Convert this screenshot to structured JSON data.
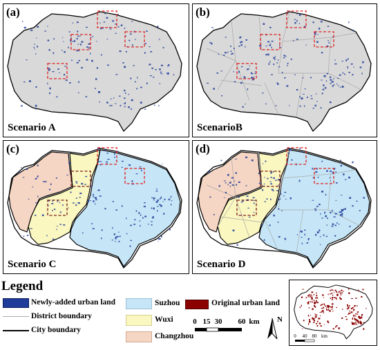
{
  "panels": [
    {
      "id": "a",
      "letter": "(a)",
      "scenario": "Scenario A",
      "mode": "gray",
      "district_lines": false,
      "urban": "newly_added"
    },
    {
      "id": "b",
      "letter": "(b)",
      "scenario": "ScenarioB",
      "mode": "gray",
      "district_lines": true,
      "urban": "newly_added"
    },
    {
      "id": "c",
      "letter": "(c)",
      "scenario": "Scenario C",
      "mode": "cities",
      "district_lines": false,
      "urban": "newly_added"
    },
    {
      "id": "d",
      "letter": "(d)",
      "scenario": "Scenario D",
      "mode": "cities",
      "district_lines": true,
      "urban": "newly_added"
    }
  ],
  "legend": {
    "title": "Legend",
    "newly_added": "Newly-added urban land",
    "district_boundary": "District boundary",
    "city_boundary": "City boundary",
    "suzhou": "Suzhou",
    "wuxi": "Wuxi",
    "changzhou": "Changzhou",
    "original_urban": "Original urban land"
  },
  "scalebar": {
    "ticks": [
      "0",
      "15",
      "30",
      "60"
    ],
    "unit": "km"
  },
  "north_label": "N",
  "inset": {
    "ticks": [
      "0",
      "40",
      "80"
    ],
    "unit": "km"
  },
  "colors": {
    "gray_fill": "#d9d9d9",
    "suzhou": "#c6e6f7",
    "wuxi": "#fbf7c0",
    "changzhou": "#f5d5c3",
    "newly_added": "#1f3c9a",
    "original_urban": "#8b0000",
    "focus_box": "#e02020"
  }
}
